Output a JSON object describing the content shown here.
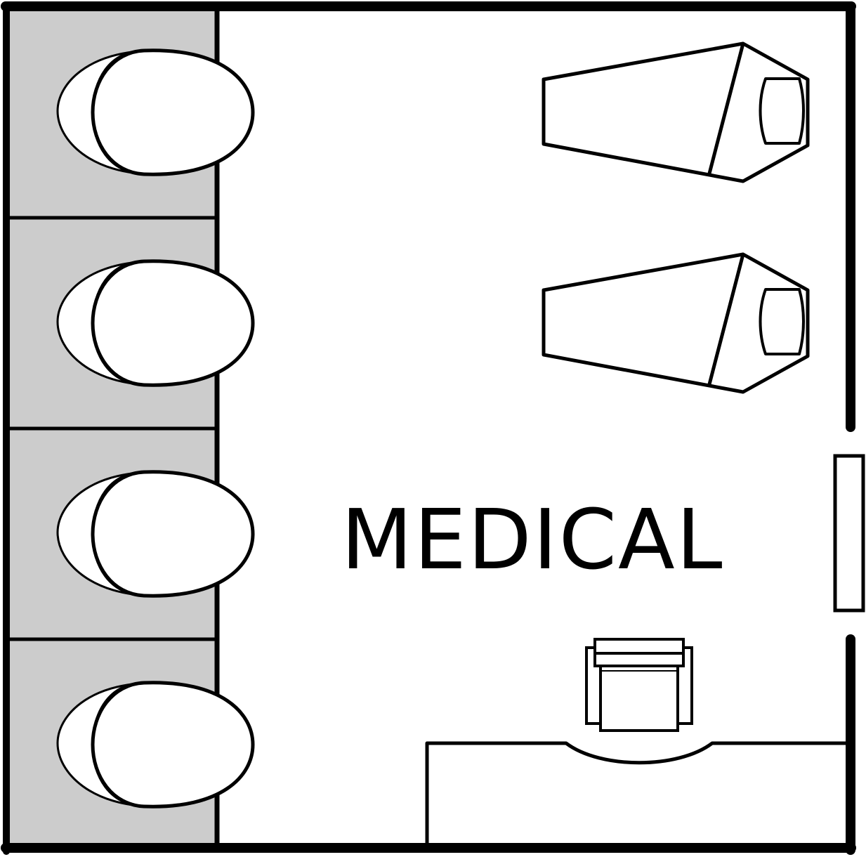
{
  "room": {
    "label": "MEDICAL"
  },
  "colors": {
    "wall": "#000000",
    "pod_fill": "#cccccc",
    "background": "#ffffff"
  },
  "fixtures": {
    "pods": [
      {
        "name": "pod-1"
      },
      {
        "name": "pod-2"
      },
      {
        "name": "pod-3"
      },
      {
        "name": "pod-4"
      }
    ],
    "beds": [
      {
        "name": "medical-bed-1"
      },
      {
        "name": "medical-bed-2"
      }
    ],
    "door": {
      "name": "entry-door"
    },
    "chair": {
      "name": "armchair"
    },
    "desk": {
      "name": "reception-desk"
    }
  }
}
